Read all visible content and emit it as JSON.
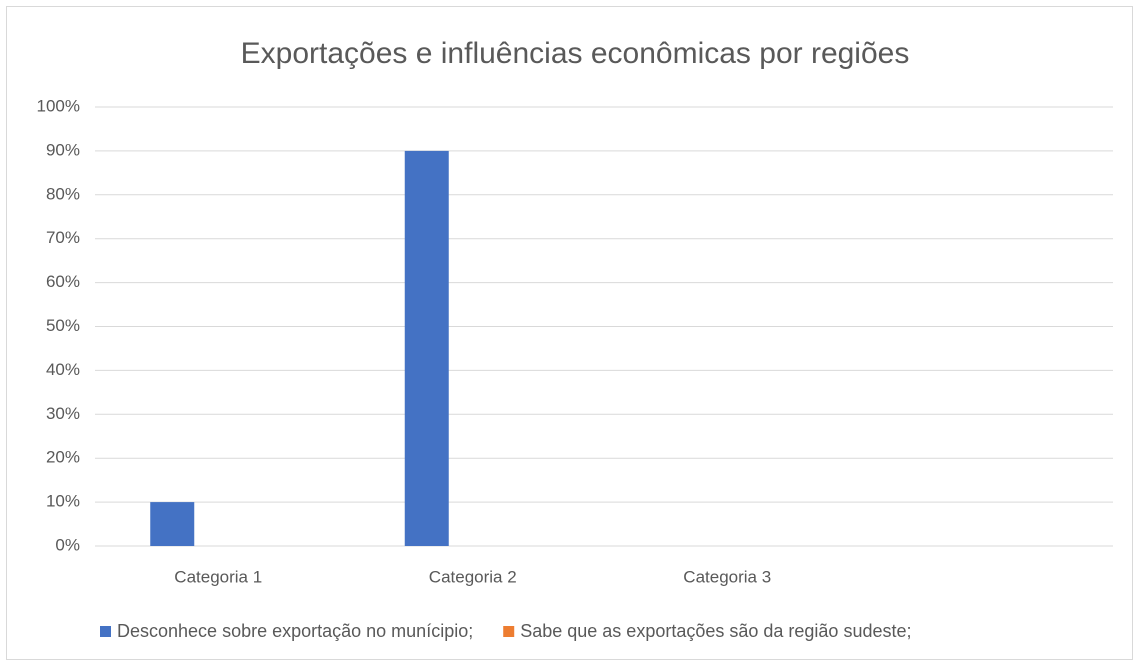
{
  "chart_data": {
    "type": "bar",
    "title": "Exportações e influências econômicas por regiões",
    "categories": [
      "Categoria 1",
      "Categoria 2",
      "Categoria 3",
      null
    ],
    "series": [
      {
        "name": "Desconhece sobre exportação no munícipio;",
        "color": "#4472c4",
        "values": [
          10,
          90,
          0,
          0
        ]
      },
      {
        "name": "Sabe que as exportações são da região sudeste;",
        "color": "#ed7d31",
        "values": [
          0,
          0,
          0,
          0
        ]
      }
    ],
    "ylim": [
      0,
      100
    ],
    "yticks": [
      {
        "value": 0,
        "label": "0%"
      },
      {
        "value": 10,
        "label": "10%"
      },
      {
        "value": 20,
        "label": "20%"
      },
      {
        "value": 30,
        "label": "30%"
      },
      {
        "value": 40,
        "label": "40%"
      },
      {
        "value": 50,
        "label": "50%"
      },
      {
        "value": 60,
        "label": "60%"
      },
      {
        "value": 70,
        "label": "70%"
      },
      {
        "value": 80,
        "label": "80%"
      },
      {
        "value": 90,
        "label": "90%"
      },
      {
        "value": 100,
        "label": "100%"
      }
    ],
    "grid": true,
    "legend": "bottom"
  }
}
